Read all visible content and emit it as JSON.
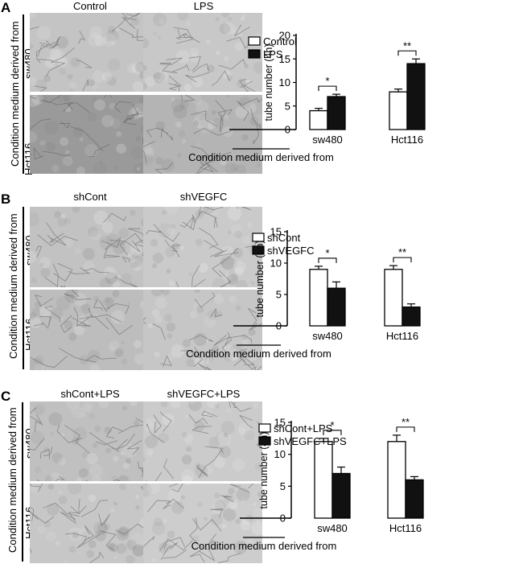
{
  "panels": [
    {
      "letter": "A",
      "col_titles": [
        "Control",
        "LPS"
      ],
      "side_label": "Condition medium derived from",
      "row_labels": [
        "sw480",
        "Hct116"
      ]
    },
    {
      "letter": "B",
      "col_titles": [
        "shCont",
        "shVEGFC"
      ],
      "side_label": "Condition medium derived from",
      "row_labels": [
        "sw480",
        "Hct116"
      ]
    },
    {
      "letter": "C",
      "col_titles": [
        "shCont+LPS",
        "shVEGFC+LPS"
      ],
      "side_label": "Condition medium derived from",
      "row_labels": [
        "sw480",
        "Hct116"
      ]
    }
  ],
  "chart_data": [
    {
      "type": "bar",
      "categories": [
        "sw480",
        "Hct116"
      ],
      "xlabel": "Condition medium derived from",
      "ylabel": "tube number (4h)",
      "ylim": [
        0,
        20
      ],
      "ticks": [
        "0",
        "5",
        "10",
        "15",
        "20"
      ],
      "legend_position": "top-right",
      "series": [
        {
          "name": "Control",
          "values": [
            4,
            8
          ],
          "errors": [
            0.5,
            0.6
          ],
          "color": "#ffffff"
        },
        {
          "name": "LPS",
          "values": [
            7,
            14
          ],
          "errors": [
            0.5,
            1.0
          ],
          "color": "#111111"
        }
      ],
      "significance": [
        "*",
        "**"
      ]
    },
    {
      "type": "bar",
      "categories": [
        "sw480",
        "Hct116"
      ],
      "xlabel": "Condition medium derived from",
      "ylabel": "tube number (4h)",
      "ylim": [
        0,
        15
      ],
      "ticks": [
        "0",
        "5",
        "10",
        "15"
      ],
      "legend_position": "top-right",
      "series": [
        {
          "name": "shCont",
          "values": [
            9,
            9
          ],
          "errors": [
            0.5,
            0.6
          ],
          "color": "#ffffff"
        },
        {
          "name": "shVEGFC",
          "values": [
            6,
            3
          ],
          "errors": [
            1.0,
            0.5
          ],
          "color": "#111111"
        }
      ],
      "significance": [
        "*",
        "**"
      ]
    },
    {
      "type": "bar",
      "categories": [
        "sw480",
        "Hct116"
      ],
      "xlabel": "Condition medium derived from",
      "ylabel": "tube number (4h)",
      "ylim": [
        0,
        15
      ],
      "ticks": [
        "0",
        "5",
        "10",
        "15"
      ],
      "legend_position": "top-right",
      "series": [
        {
          "name": "shCont+LPS",
          "values": [
            12,
            12
          ],
          "errors": [
            0.5,
            1.0
          ],
          "color": "#ffffff"
        },
        {
          "name": "shVEGFC+LPS",
          "values": [
            7,
            6
          ],
          "errors": [
            1.0,
            0.5
          ],
          "color": "#111111"
        }
      ],
      "significance": [
        "*",
        "**"
      ]
    }
  ]
}
